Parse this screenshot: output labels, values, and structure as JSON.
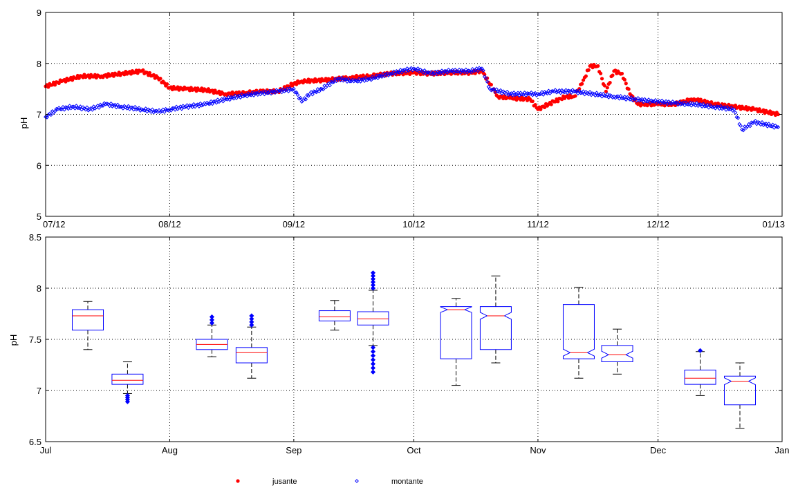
{
  "chart_data": [
    {
      "type": "scatter",
      "ylabel": "pH",
      "ylim": [
        5,
        9
      ],
      "yticks": [
        "5",
        "6",
        "7",
        "8",
        "9"
      ],
      "x_range": [
        "07/12",
        "01/13"
      ],
      "xticks": [
        "07/12",
        "08/12",
        "09/12",
        "10/12",
        "11/12",
        "12/12",
        "01/13"
      ],
      "grid": true,
      "series": [
        {
          "name": "jusante",
          "color": "#ff0000",
          "marker": "dot",
          "x": [
            "07/01",
            "07/05",
            "07/10",
            "07/15",
            "07/20",
            "07/25",
            "07/29",
            "08/01",
            "08/05",
            "08/10",
            "08/15",
            "08/20",
            "08/24",
            "08/28",
            "09/01",
            "09/03",
            "09/10",
            "09/15",
            "09/20",
            "09/25",
            "10/01",
            "10/05",
            "10/10",
            "10/15",
            "10/18",
            "10/22",
            "10/25",
            "10/30",
            "11/01",
            "11/05",
            "11/08",
            "11/10",
            "11/12",
            "11/14",
            "11/16",
            "11/18",
            "11/20",
            "11/22",
            "11/24",
            "11/26",
            "11/28",
            "12/01",
            "12/05",
            "12/10",
            "12/15",
            "12/20",
            "12/25",
            "12/31"
          ],
          "y": [
            7.55,
            7.65,
            7.75,
            7.75,
            7.8,
            7.85,
            7.72,
            7.52,
            7.5,
            7.48,
            7.4,
            7.42,
            7.45,
            7.45,
            7.6,
            7.65,
            7.68,
            7.72,
            7.75,
            7.8,
            7.82,
            7.8,
            7.82,
            7.82,
            7.85,
            7.35,
            7.32,
            7.3,
            7.1,
            7.25,
            7.35,
            7.35,
            7.6,
            7.95,
            7.95,
            7.45,
            7.85,
            7.8,
            7.4,
            7.2,
            7.2,
            7.2,
            7.2,
            7.3,
            7.2,
            7.15,
            7.1,
            7.0
          ]
        },
        {
          "name": "montante",
          "color": "#0000ff",
          "marker": "diamond",
          "x": [
            "07/01",
            "07/04",
            "07/08",
            "07/12",
            "07/16",
            "07/20",
            "07/25",
            "07/29",
            "08/01",
            "08/05",
            "08/10",
            "08/15",
            "08/20",
            "08/24",
            "08/28",
            "09/01",
            "09/03",
            "09/05",
            "09/08",
            "09/12",
            "09/16",
            "09/20",
            "09/25",
            "10/01",
            "10/05",
            "10/10",
            "10/15",
            "10/18",
            "10/20",
            "10/25",
            "10/30",
            "11/01",
            "11/05",
            "11/10",
            "11/15",
            "11/20",
            "11/25",
            "11/30",
            "12/01",
            "12/05",
            "12/10",
            "12/15",
            "12/20",
            "12/22",
            "12/25",
            "12/31"
          ],
          "y": [
            6.95,
            7.1,
            7.15,
            7.1,
            7.2,
            7.15,
            7.1,
            7.05,
            7.1,
            7.15,
            7.2,
            7.3,
            7.38,
            7.42,
            7.45,
            7.5,
            7.25,
            7.4,
            7.5,
            7.7,
            7.65,
            7.7,
            7.8,
            7.9,
            7.8,
            7.85,
            7.85,
            7.9,
            7.5,
            7.4,
            7.4,
            7.4,
            7.45,
            7.45,
            7.4,
            7.35,
            7.3,
            7.25,
            7.25,
            7.22,
            7.2,
            7.15,
            7.1,
            6.7,
            6.85,
            6.75
          ]
        }
      ]
    },
    {
      "type": "box",
      "ylabel": "pH",
      "ylim": [
        6.5,
        8.5
      ],
      "yticks": [
        "6.5",
        "7",
        "7.5",
        "8",
        "8.5"
      ],
      "xticks": [
        "Jul",
        "Aug",
        "Sep",
        "Oct",
        "Nov",
        "Dec",
        "Jan"
      ],
      "grid": true,
      "boxes": [
        {
          "month": "Jul",
          "series": "jusante",
          "whisker_low": 7.4,
          "q1": 7.59,
          "median": 7.73,
          "q3": 7.79,
          "whisker_high": 7.87,
          "notched": false
        },
        {
          "month": "Jul",
          "series": "montante",
          "whisker_low": 6.97,
          "q1": 7.06,
          "median": 7.1,
          "q3": 7.16,
          "whisker_high": 7.28,
          "notched": false,
          "outliers_low": [
            6.95,
            6.93,
            6.91,
            6.89
          ]
        },
        {
          "month": "Aug",
          "series": "jusante",
          "whisker_low": 7.33,
          "q1": 7.4,
          "median": 7.45,
          "q3": 7.5,
          "whisker_high": 7.64,
          "notched": false,
          "outliers_high": [
            7.66,
            7.69,
            7.72
          ]
        },
        {
          "month": "Aug",
          "series": "montante",
          "whisker_low": 7.12,
          "q1": 7.27,
          "median": 7.37,
          "q3": 7.42,
          "whisker_high": 7.62,
          "notched": false,
          "outliers_high": [
            7.64,
            7.67,
            7.7,
            7.73
          ]
        },
        {
          "month": "Sep",
          "series": "jusante",
          "whisker_low": 7.59,
          "q1": 7.68,
          "median": 7.72,
          "q3": 7.78,
          "whisker_high": 7.88,
          "notched": false
        },
        {
          "month": "Sep",
          "series": "montante",
          "whisker_low": 7.44,
          "q1": 7.64,
          "median": 7.7,
          "q3": 7.77,
          "whisker_high": 7.98,
          "notched": false,
          "outliers_high": [
            8.0,
            8.03,
            8.06,
            8.09,
            8.12,
            8.15
          ],
          "outliers_low": [
            7.42,
            7.38,
            7.34,
            7.3,
            7.26,
            7.22,
            7.18
          ]
        },
        {
          "month": "Oct",
          "series": "jusante",
          "whisker_low": 7.05,
          "q1": 7.31,
          "median": 7.79,
          "q3": 7.82,
          "whisker_high": 7.9,
          "notched": true
        },
        {
          "month": "Oct",
          "series": "montante",
          "whisker_low": 7.27,
          "q1": 7.4,
          "median": 7.73,
          "q3": 7.82,
          "whisker_high": 8.12,
          "notched": true
        },
        {
          "month": "Nov",
          "series": "jusante",
          "whisker_low": 7.12,
          "q1": 7.31,
          "median": 7.37,
          "q3": 7.84,
          "whisker_high": 8.01,
          "notched": true
        },
        {
          "month": "Nov",
          "series": "montante",
          "whisker_low": 7.16,
          "q1": 7.28,
          "median": 7.35,
          "q3": 7.44,
          "whisker_high": 7.6,
          "notched": true
        },
        {
          "month": "Dec",
          "series": "jusante",
          "whisker_low": 6.95,
          "q1": 7.06,
          "median": 7.12,
          "q3": 7.2,
          "whisker_high": 7.38,
          "notched": false,
          "outliers_high": [
            7.39
          ]
        },
        {
          "month": "Dec",
          "series": "montante",
          "whisker_low": 6.63,
          "q1": 6.86,
          "median": 7.09,
          "q3": 7.14,
          "whisker_high": 7.27,
          "notched": true
        }
      ],
      "legend": [
        {
          "label": "jusante",
          "color": "#ff0000",
          "marker": "dot"
        },
        {
          "label": "montante",
          "color": "#0000ff",
          "marker": "diamond"
        }
      ],
      "legend_position": "bottom"
    }
  ]
}
